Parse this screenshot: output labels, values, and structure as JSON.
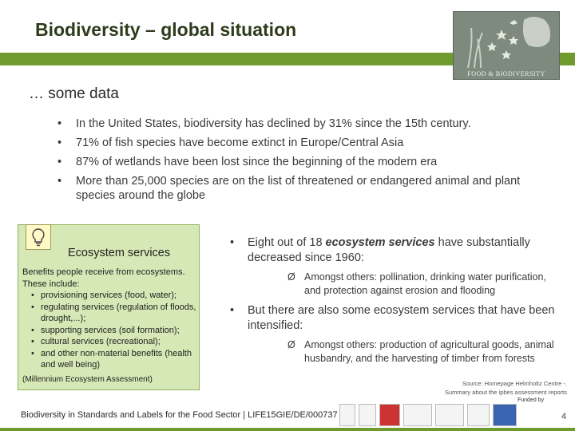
{
  "slide": {
    "title": "Biodiversity – global situation",
    "logo_text": "FOOD & BIODIVERSITY",
    "subhead": "… some data",
    "facts": [
      "In the United States, biodiversity has declined by 31% since the 15th century.",
      "71% of fish species have become extinct in Europe/Central Asia",
      "87% of wetlands have been lost since the beginning of the modern era",
      "More than 25,000 species are on the list of threatened or endangered animal and plant species around the globe"
    ],
    "eco_box": {
      "title": "Ecosystem services",
      "intro": "Benefits people receive from ecosystems. These include:",
      "items": [
        "provisioning services (food, water);",
        "regulating services (regulation of floods, drought,...);",
        "supporting services (soil formation);",
        "cultural services (recreational);",
        "and other non-material benefits (health and well being)"
      ],
      "source": "(Millennium Ecosystem Assessment)"
    },
    "right": {
      "b1_pre": "Eight out of 18 ",
      "b1_em": "ecosystem services",
      "b1_post": " have substantially decreased since 1960:",
      "sub1": "Amongst others: pollination, drinking water purification, and protection against erosion and flooding",
      "b2": "But there are also some ecosystem services that have been intensified:",
      "sub2": "Amongst others: production of agricultural goods, animal husbandry, and the harvesting of timber from forests",
      "arrow": "Ø"
    },
    "source": "Source: Homepage Helmholtz Centre -. Summary about the ipbes assessment reports",
    "funded_by": "Funded by",
    "footer": "Biodiversity in Standards and Labels for the Food Sector | LIFE15GIE/DE/000737 |",
    "page_number": "4"
  }
}
